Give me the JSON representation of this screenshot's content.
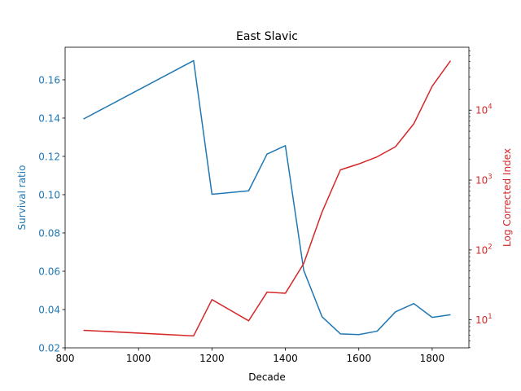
{
  "chart_data": {
    "type": "line",
    "title": "East Slavic",
    "xlabel": "Decade",
    "ylabel_left": "Survival ratio",
    "ylabel_right": "Log Corrected Index",
    "xlim": [
      800,
      1900
    ],
    "ylim_left": [
      0.02,
      0.177
    ],
    "ylim_right_log10": [
      0.6,
      4.9
    ],
    "right_scale": "log",
    "x_ticks": [
      800,
      1000,
      1200,
      1400,
      1600,
      1800
    ],
    "y_left_ticks": [
      0.02,
      0.04,
      0.06,
      0.08,
      0.1,
      0.12,
      0.14,
      0.16
    ],
    "y_right_ticks": [
      {
        "label": "10",
        "exp": "1",
        "value": 10
      },
      {
        "label": "10",
        "exp": "2",
        "value": 100
      },
      {
        "label": "10",
        "exp": "3",
        "value": 1000
      },
      {
        "label": "10",
        "exp": "4",
        "value": 10000
      }
    ],
    "colors": {
      "left": "#1f77b4",
      "right": "#d62728"
    },
    "series": [
      {
        "axis": "left",
        "color": "#1f77b4",
        "x": [
          850,
          1150,
          1200,
          1300,
          1350,
          1400,
          1450,
          1500,
          1550,
          1600,
          1650,
          1700,
          1750,
          1800,
          1850
        ],
        "values": [
          0.1395,
          0.17,
          0.1002,
          0.102,
          0.1212,
          0.1256,
          0.0605,
          0.0362,
          0.0273,
          0.0269,
          0.0287,
          0.0388,
          0.0431,
          0.0359,
          0.0373
        ]
      },
      {
        "axis": "right",
        "color": "#d62728",
        "x": [
          850,
          1150,
          1200,
          1300,
          1350,
          1400,
          1450,
          1500,
          1550,
          1600,
          1650,
          1700,
          1750,
          1800,
          1850
        ],
        "values": [
          7.1,
          5.9,
          19.5,
          9.7,
          24.9,
          24.0,
          64,
          350,
          1400,
          1700,
          2150,
          3000,
          6400,
          22000,
          51000
        ]
      }
    ]
  }
}
